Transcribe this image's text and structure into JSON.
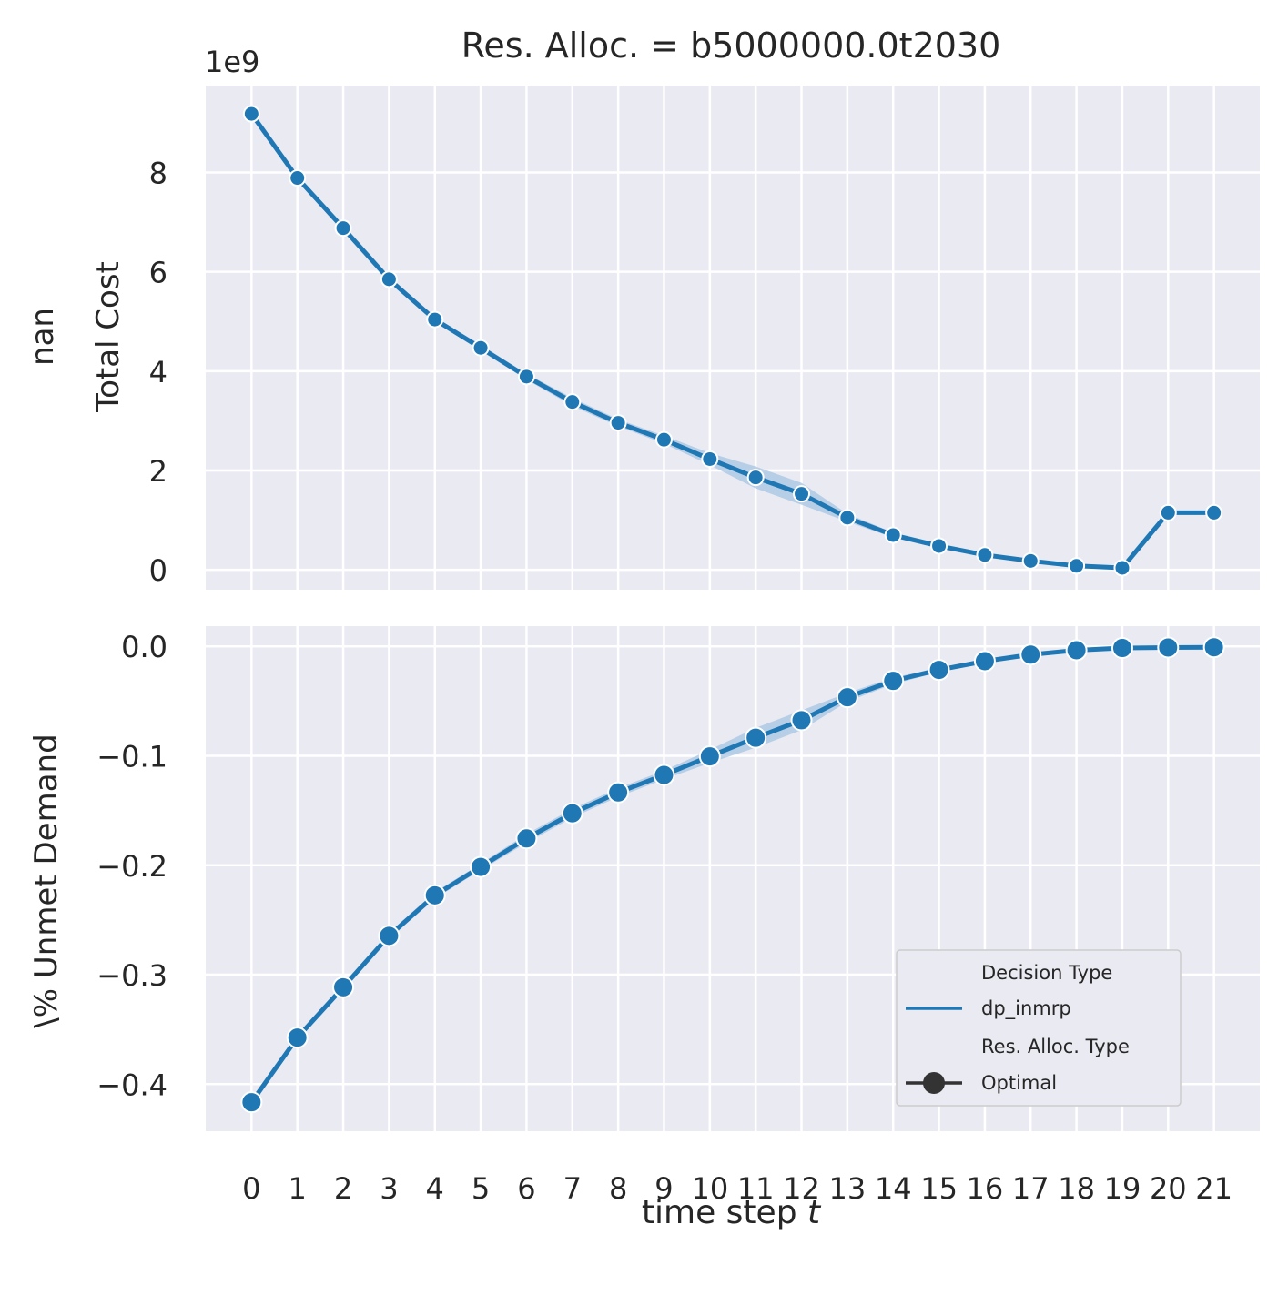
{
  "chart_data": [
    {
      "type": "line",
      "title": "Res. Alloc. = b5000000.0t2030",
      "xlabel": "",
      "ylabel_lines": [
        "nan",
        "Total Cost"
      ],
      "offset_text": "1e9",
      "x": [
        0,
        1,
        2,
        3,
        4,
        5,
        6,
        7,
        8,
        9,
        10,
        11,
        12,
        13,
        14,
        15,
        16,
        17,
        18,
        19,
        20,
        21
      ],
      "xlim": [
        -1,
        22
      ],
      "ylim": [
        -0.4,
        9.75
      ],
      "yticks": [
        0,
        2,
        4,
        6,
        8
      ],
      "ytick_labels": [
        "0",
        "2",
        "4",
        "6",
        "8"
      ],
      "grid": true,
      "series": [
        {
          "name": "dp_inmrp",
          "color": "#1f77b4",
          "values": [
            9.18,
            7.89,
            6.88,
            5.85,
            5.04,
            4.47,
            3.89,
            3.38,
            2.96,
            2.62,
            2.23,
            1.86,
            1.53,
            1.05,
            0.7,
            0.48,
            0.3,
            0.18,
            0.08,
            0.04,
            1.15,
            1.15
          ],
          "band": [
            0.03,
            0.05,
            0.05,
            0.05,
            0.05,
            0.06,
            0.06,
            0.08,
            0.07,
            0.08,
            0.12,
            0.22,
            0.22,
            0.08,
            0.05,
            0.05,
            0.04,
            0.03,
            0.02,
            0.02,
            0.02,
            0.02
          ]
        }
      ]
    },
    {
      "type": "line",
      "title": "",
      "xlabel": "time step t",
      "xlabel_text": "time step ",
      "xlabel_var": "t",
      "ylabel": "\\% Unmet Demand",
      "x": [
        0,
        1,
        2,
        3,
        4,
        5,
        6,
        7,
        8,
        9,
        10,
        11,
        12,
        13,
        14,
        15,
        16,
        17,
        18,
        19,
        20,
        21
      ],
      "xlim": [
        -1,
        22
      ],
      "xticks": [
        0,
        1,
        2,
        3,
        4,
        5,
        6,
        7,
        8,
        9,
        10,
        11,
        12,
        13,
        14,
        15,
        16,
        17,
        18,
        19,
        20,
        21
      ],
      "xtick_labels": [
        "0",
        "1",
        "2",
        "3",
        "4",
        "5",
        "6",
        "7",
        "8",
        "9",
        "10",
        "11",
        "12",
        "13",
        "14",
        "15",
        "16",
        "17",
        "18",
        "19",
        "20",
        "21"
      ],
      "ylim": [
        -0.443,
        0.0185
      ],
      "yticks": [
        0.0,
        -0.1,
        -0.2,
        -0.3,
        -0.4
      ],
      "ytick_labels": [
        "0.0",
        "−0.1",
        "−0.2",
        "−0.3",
        "−0.4"
      ],
      "grid": true,
      "series": [
        {
          "name": "dp_inmrp",
          "color": "#1f77b4",
          "values": [
            -0.4165,
            -0.3575,
            -0.3115,
            -0.2645,
            -0.2275,
            -0.2015,
            -0.1755,
            -0.1525,
            -0.1335,
            -0.1175,
            -0.1005,
            -0.0835,
            -0.0675,
            -0.0465,
            -0.0315,
            -0.0215,
            -0.0135,
            -0.0075,
            -0.0035,
            -0.0015,
            -0.001,
            -0.0008
          ],
          "band": [
            0.003,
            0.003,
            0.003,
            0.003,
            0.003,
            0.003,
            0.004,
            0.004,
            0.004,
            0.004,
            0.006,
            0.009,
            0.009,
            0.004,
            0.003,
            0.002,
            0.002,
            0.001,
            0.001,
            0.001,
            0.001,
            0.001
          ]
        }
      ],
      "legend": {
        "location": "lower-right",
        "title_hue": "Decision Type",
        "hue_entry": "dp_inmrp",
        "title_style": "Res. Alloc. Type",
        "style_entry": "Optimal",
        "style_color": "#333333"
      }
    }
  ],
  "colors": {
    "panel_bg": "#eaeaf2",
    "grid": "#ffffff",
    "line": "#1f77b4",
    "band": "#a6c4e3",
    "text": "#262626"
  }
}
